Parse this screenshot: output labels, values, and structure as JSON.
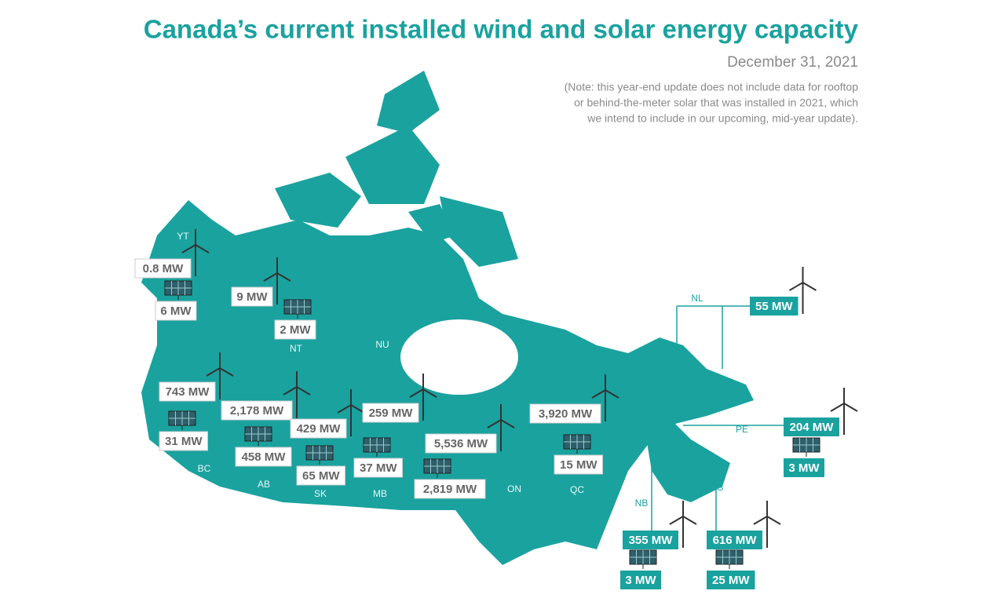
{
  "header": {
    "title": "Canada’s current installed wind and solar energy capacity",
    "date": "December 31, 2021",
    "note": [
      "(Note: this year-end update does not include data for rooftop",
      "or behind-the-meter solar that was installed in 2021, which",
      "we intend to include in our upcoming, mid-year update)."
    ]
  },
  "regions": [
    {
      "label": "YT",
      "wind": "0.8 MW",
      "solar": "6 MW"
    },
    {
      "label": "NT",
      "wind": "9 MW",
      "solar": "2 MW"
    },
    {
      "label": "NU"
    },
    {
      "label": "BC",
      "wind": "743 MW",
      "solar": "31 MW"
    },
    {
      "label": "AB",
      "wind": "2,178 MW",
      "solar": "458 MW"
    },
    {
      "label": "SK",
      "wind": "429 MW",
      "solar": "65 MW"
    },
    {
      "label": "MB",
      "wind": "259 MW",
      "solar": "37 MW"
    },
    {
      "label": "ON",
      "wind": "5,536 MW",
      "solar": "2,819 MW"
    },
    {
      "label": "QC",
      "wind": "3,920 MW",
      "solar": "15 MW"
    },
    {
      "label": "NL",
      "wind": "55 MW"
    },
    {
      "label": "PE",
      "wind": "204 MW",
      "solar": "3 MW"
    },
    {
      "label": "NB",
      "wind": "355 MW",
      "solar": "3 MW"
    },
    {
      "label": "NS",
      "wind": "616 MW",
      "solar": "25 MW"
    }
  ]
}
